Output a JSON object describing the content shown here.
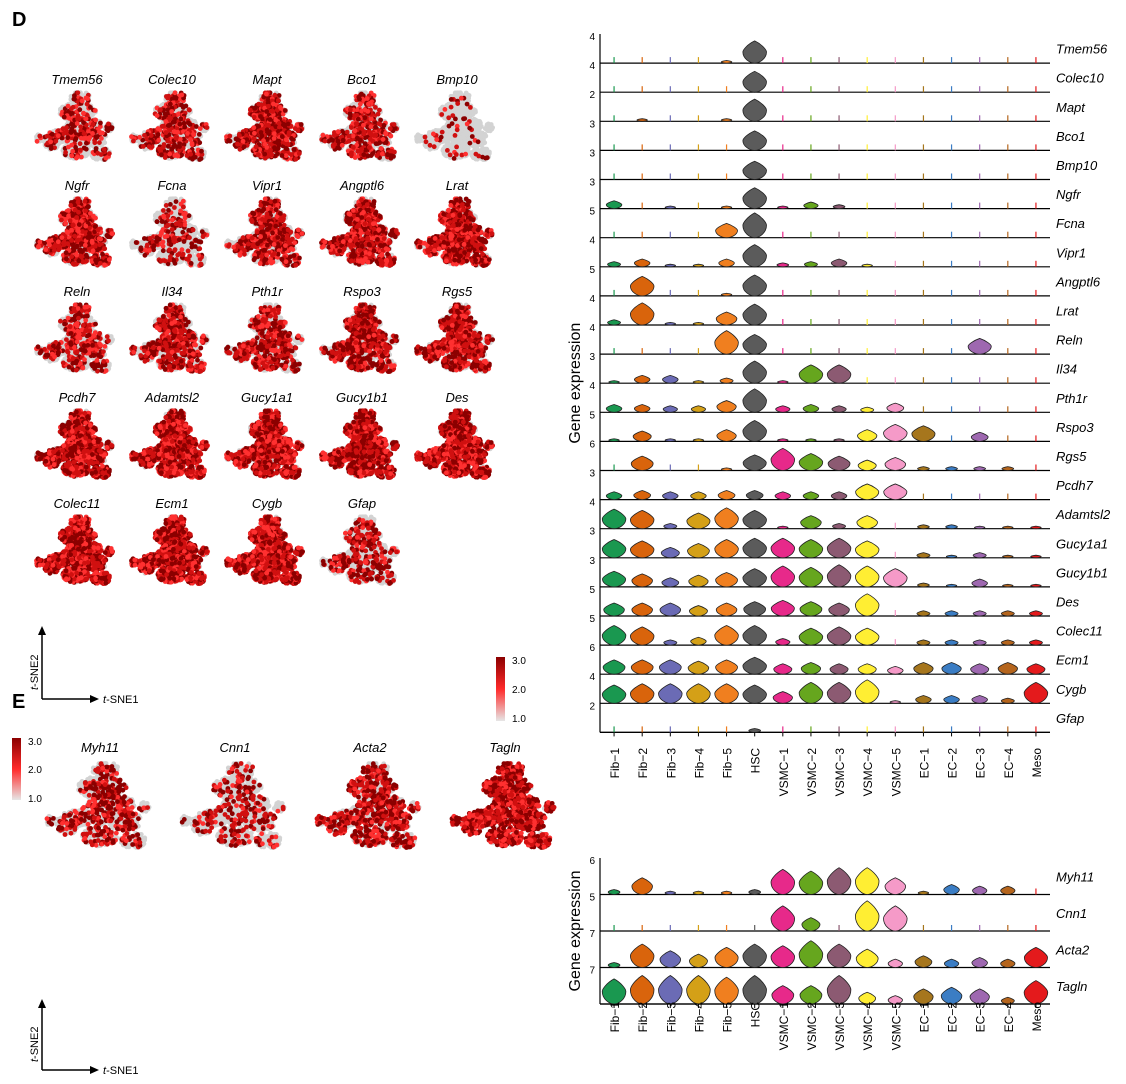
{
  "panels": {
    "d": "D",
    "e": "E"
  },
  "tsne": {
    "xlabel_prefix": "t",
    "xlabel_suffix": "-SNE1",
    "ylabel_prefix": "t",
    "ylabel_suffix": "-SNE2",
    "colorbar": {
      "ticks": [
        "3.0",
        "2.0",
        "1.0"
      ],
      "colors": [
        "#8b0000",
        "#ff2a2a",
        "#d3d3d3"
      ]
    },
    "panel_d_genes": [
      "Tmem56",
      "Colec10",
      "Mapt",
      "Bco1",
      "Bmp10",
      "Ngfr",
      "Fcna",
      "Vipr1",
      "Angptl6",
      "Lrat",
      "Reln",
      "Il34",
      "Pth1r",
      "Rspo3",
      "Rgs5",
      "Pcdh7",
      "Adamtsl2",
      "Gucy1a1",
      "Gucy1b1",
      "Des",
      "Colec11",
      "Ecm1",
      "Cygb",
      "Gfap"
    ],
    "panel_d_levels": [
      0.2,
      0.25,
      0.45,
      0.3,
      0.05,
      0.45,
      0.15,
      0.4,
      0.5,
      0.6,
      0.25,
      0.4,
      0.35,
      0.45,
      0.55,
      0.75,
      0.85,
      0.75,
      0.75,
      0.8,
      0.85,
      0.9,
      0.95,
      0.2
    ],
    "panel_e_genes": [
      "Myh11",
      "Cnn1",
      "Acta2",
      "Tagln"
    ],
    "panel_e_levels": [
      0.35,
      0.2,
      0.5,
      0.85
    ]
  },
  "chart_data": [
    {
      "type": "violin",
      "panel": "D",
      "ylabel": "Gene expression",
      "categories": [
        "Fib−1",
        "Fib−2",
        "Fib−3",
        "Fib−4",
        "Fib−5",
        "HSC",
        "VSMC−1",
        "VSMC−2",
        "VSMC−3",
        "VSMC−4",
        "VSMC−5",
        "EC−1",
        "EC−2",
        "EC−3",
        "EC−4",
        "Meso"
      ],
      "colors": [
        "#1a9850",
        "#d9640c",
        "#6b6bb5",
        "#d4a017",
        "#f07f1f",
        "#5b5b5b",
        "#e7298a",
        "#66a61e",
        "#8c5a72",
        "#ffee33",
        "#f59ac8",
        "#a6761d",
        "#3b7dc4",
        "#9e68b0",
        "#b5651d",
        "#e41a1c"
      ],
      "series": [
        {
          "name": "Tmem56",
          "ymax": "4",
          "values": [
            0.05,
            0.05,
            0.02,
            0.02,
            0.1,
            0.85,
            0,
            0,
            0,
            0,
            0,
            0,
            0,
            0,
            0,
            0
          ]
        },
        {
          "name": "Colec10",
          "ymax": "4",
          "values": [
            0.02,
            0.02,
            0,
            0,
            0.02,
            0.8,
            0,
            0,
            0,
            0,
            0,
            0,
            0,
            0,
            0,
            0
          ]
        },
        {
          "name": "Mapt",
          "ymax": "2",
          "values": [
            0.02,
            0.1,
            0.02,
            0.02,
            0.1,
            0.85,
            0.02,
            0.05,
            0.02,
            0.02,
            0,
            0,
            0,
            0,
            0,
            0
          ]
        },
        {
          "name": "Bco1",
          "ymax": "3",
          "values": [
            0.02,
            0.05,
            0.02,
            0.02,
            0.05,
            0.75,
            0,
            0,
            0,
            0,
            0,
            0,
            0,
            0,
            0,
            0
          ]
        },
        {
          "name": "Bmp10",
          "ymax": "3",
          "values": [
            0,
            0.02,
            0,
            0,
            0.02,
            0.7,
            0,
            0,
            0,
            0,
            0,
            0,
            0,
            0,
            0,
            0
          ]
        },
        {
          "name": "Ngfr",
          "ymax": "3",
          "values": [
            0.3,
            0.05,
            0.1,
            0.05,
            0.1,
            0.8,
            0.1,
            0.25,
            0.15,
            0.02,
            0,
            0,
            0,
            0,
            0,
            0
          ]
        },
        {
          "name": "Fcna",
          "ymax": "5",
          "values": [
            0.02,
            0.05,
            0.02,
            0.02,
            0.55,
            0.95,
            0,
            0,
            0,
            0,
            0,
            0,
            0,
            0,
            0,
            0
          ]
        },
        {
          "name": "Vipr1",
          "ymax": "4",
          "values": [
            0.2,
            0.3,
            0.1,
            0.1,
            0.3,
            0.85,
            0.15,
            0.2,
            0.3,
            0.1,
            0,
            0,
            0,
            0,
            0,
            0
          ]
        },
        {
          "name": "Angptl6",
          "ymax": "5",
          "values": [
            0.05,
            0.75,
            0.05,
            0.02,
            0.1,
            0.8,
            0.02,
            0.02,
            0.02,
            0.02,
            0,
            0,
            0,
            0,
            0,
            0
          ]
        },
        {
          "name": "Lrat",
          "ymax": "4",
          "values": [
            0.2,
            0.85,
            0.1,
            0.1,
            0.5,
            0.8,
            0,
            0,
            0,
            0,
            0,
            0,
            0,
            0,
            0,
            0
          ]
        },
        {
          "name": "Reln",
          "ymax": "4",
          "values": [
            0.02,
            0.05,
            0.02,
            0.02,
            0.9,
            0.75,
            0,
            0,
            0,
            0,
            0,
            0,
            0,
            0.6,
            0,
            0
          ]
        },
        {
          "name": "Il34",
          "ymax": "3",
          "values": [
            0.1,
            0.3,
            0.3,
            0.1,
            0.2,
            0.85,
            0.1,
            0.7,
            0.7,
            0.02,
            0,
            0,
            0,
            0,
            0,
            0
          ]
        },
        {
          "name": "Pth1r",
          "ymax": "4",
          "values": [
            0.3,
            0.3,
            0.25,
            0.25,
            0.45,
            0.9,
            0.25,
            0.3,
            0.25,
            0.2,
            0.35,
            0,
            0,
            0,
            0,
            0
          ]
        },
        {
          "name": "Rspo3",
          "ymax": "5",
          "values": [
            0.1,
            0.4,
            0.1,
            0.1,
            0.45,
            0.8,
            0.1,
            0.1,
            0.1,
            0.45,
            0.65,
            0.6,
            0.02,
            0.35,
            0.02,
            0
          ]
        },
        {
          "name": "Rgs5",
          "ymax": "6",
          "values": [
            0.05,
            0.55,
            0.05,
            0.05,
            0.1,
            0.6,
            0.85,
            0.65,
            0.55,
            0.4,
            0.5,
            0.15,
            0.15,
            0.15,
            0.15,
            0
          ]
        },
        {
          "name": "Pcdh7",
          "ymax": "3",
          "values": [
            0.3,
            0.35,
            0.3,
            0.3,
            0.35,
            0.35,
            0.3,
            0.3,
            0.3,
            0.6,
            0.6,
            0,
            0,
            0,
            0,
            0
          ]
        },
        {
          "name": "Adamtsl2",
          "ymax": "4",
          "values": [
            0.75,
            0.7,
            0.2,
            0.6,
            0.8,
            0.7,
            0.1,
            0.5,
            0.2,
            0.5,
            0.02,
            0.15,
            0.15,
            0.1,
            0.1,
            0.1
          ]
        },
        {
          "name": "Gucy1a1",
          "ymax": "3",
          "values": [
            0.7,
            0.65,
            0.4,
            0.55,
            0.7,
            0.75,
            0.75,
            0.7,
            0.75,
            0.65,
            0.05,
            0.2,
            0.1,
            0.2,
            0.1,
            0.1
          ]
        },
        {
          "name": "Gucy1b1",
          "ymax": "3",
          "values": [
            0.6,
            0.5,
            0.35,
            0.45,
            0.55,
            0.7,
            0.8,
            0.75,
            0.85,
            0.8,
            0.7,
            0.15,
            0.1,
            0.3,
            0.1,
            0.1
          ]
        },
        {
          "name": "Des",
          "ymax": "5",
          "values": [
            0.5,
            0.5,
            0.5,
            0.4,
            0.5,
            0.55,
            0.6,
            0.55,
            0.5,
            0.85,
            0.05,
            0.2,
            0.2,
            0.2,
            0.2,
            0.2
          ]
        },
        {
          "name": "Colec11",
          "ymax": "5",
          "values": [
            0.75,
            0.7,
            0.2,
            0.3,
            0.75,
            0.75,
            0.25,
            0.65,
            0.7,
            0.65,
            0.05,
            0.2,
            0.2,
            0.2,
            0.2,
            0.2
          ]
        },
        {
          "name": "Ecm1",
          "ymax": "6",
          "values": [
            0.55,
            0.55,
            0.55,
            0.5,
            0.55,
            0.65,
            0.4,
            0.45,
            0.4,
            0.4,
            0.3,
            0.45,
            0.45,
            0.4,
            0.45,
            0.4
          ]
        },
        {
          "name": "Cygb",
          "ymax": "4",
          "values": [
            0.7,
            0.75,
            0.75,
            0.75,
            0.75,
            0.7,
            0.45,
            0.8,
            0.8,
            0.9,
            0.1,
            0.3,
            0.3,
            0.3,
            0.2,
            0.8
          ]
        },
        {
          "name": "Gfap",
          "ymax": "2",
          "values": [
            0.02,
            0.02,
            0.02,
            0.02,
            0.02,
            0.15,
            0,
            0,
            0,
            0,
            0,
            0,
            0,
            0,
            0,
            0
          ]
        }
      ]
    },
    {
      "type": "violin",
      "panel": "E",
      "ylabel": "Gene expression",
      "categories": [
        "Fib−1",
        "Fib−2",
        "Fib−3",
        "Fib−4",
        "Fib−5",
        "HSC",
        "VSMC−1",
        "VSMC−2",
        "VSMC−3",
        "VSMC−4",
        "VSMC−5",
        "EC−1",
        "EC−2",
        "EC−3",
        "EC−4",
        "Meso"
      ],
      "colors": [
        "#1a9850",
        "#d9640c",
        "#6b6bb5",
        "#d4a017",
        "#f07f1f",
        "#5b5b5b",
        "#e7298a",
        "#66a61e",
        "#8c5a72",
        "#ffee33",
        "#f59ac8",
        "#a6761d",
        "#3b7dc4",
        "#9e68b0",
        "#b5651d",
        "#e41a1c"
      ],
      "series": [
        {
          "name": "Myh11",
          "ymax": "6",
          "values": [
            0.15,
            0.5,
            0.1,
            0.1,
            0.1,
            0.15,
            0.75,
            0.7,
            0.8,
            0.8,
            0.5,
            0.1,
            0.3,
            0.25,
            0.25,
            0
          ]
        },
        {
          "name": "Cnn1",
          "ymax": "5",
          "values": [
            0.02,
            0.05,
            0.02,
            0.02,
            0.02,
            0.02,
            0.75,
            0.4,
            0.02,
            0.9,
            0.75,
            0,
            0,
            0,
            0,
            0
          ]
        },
        {
          "name": "Acta2",
          "ymax": "7",
          "values": [
            0.15,
            0.7,
            0.5,
            0.4,
            0.6,
            0.7,
            0.65,
            0.8,
            0.7,
            0.55,
            0.25,
            0.35,
            0.25,
            0.3,
            0.25,
            0.6
          ]
        },
        {
          "name": "Tagln",
          "ymax": "7",
          "values": [
            0.75,
            0.85,
            0.85,
            0.85,
            0.8,
            0.85,
            0.55,
            0.55,
            0.85,
            0.35,
            0.25,
            0.45,
            0.5,
            0.45,
            0.2,
            0.7
          ]
        }
      ]
    }
  ]
}
